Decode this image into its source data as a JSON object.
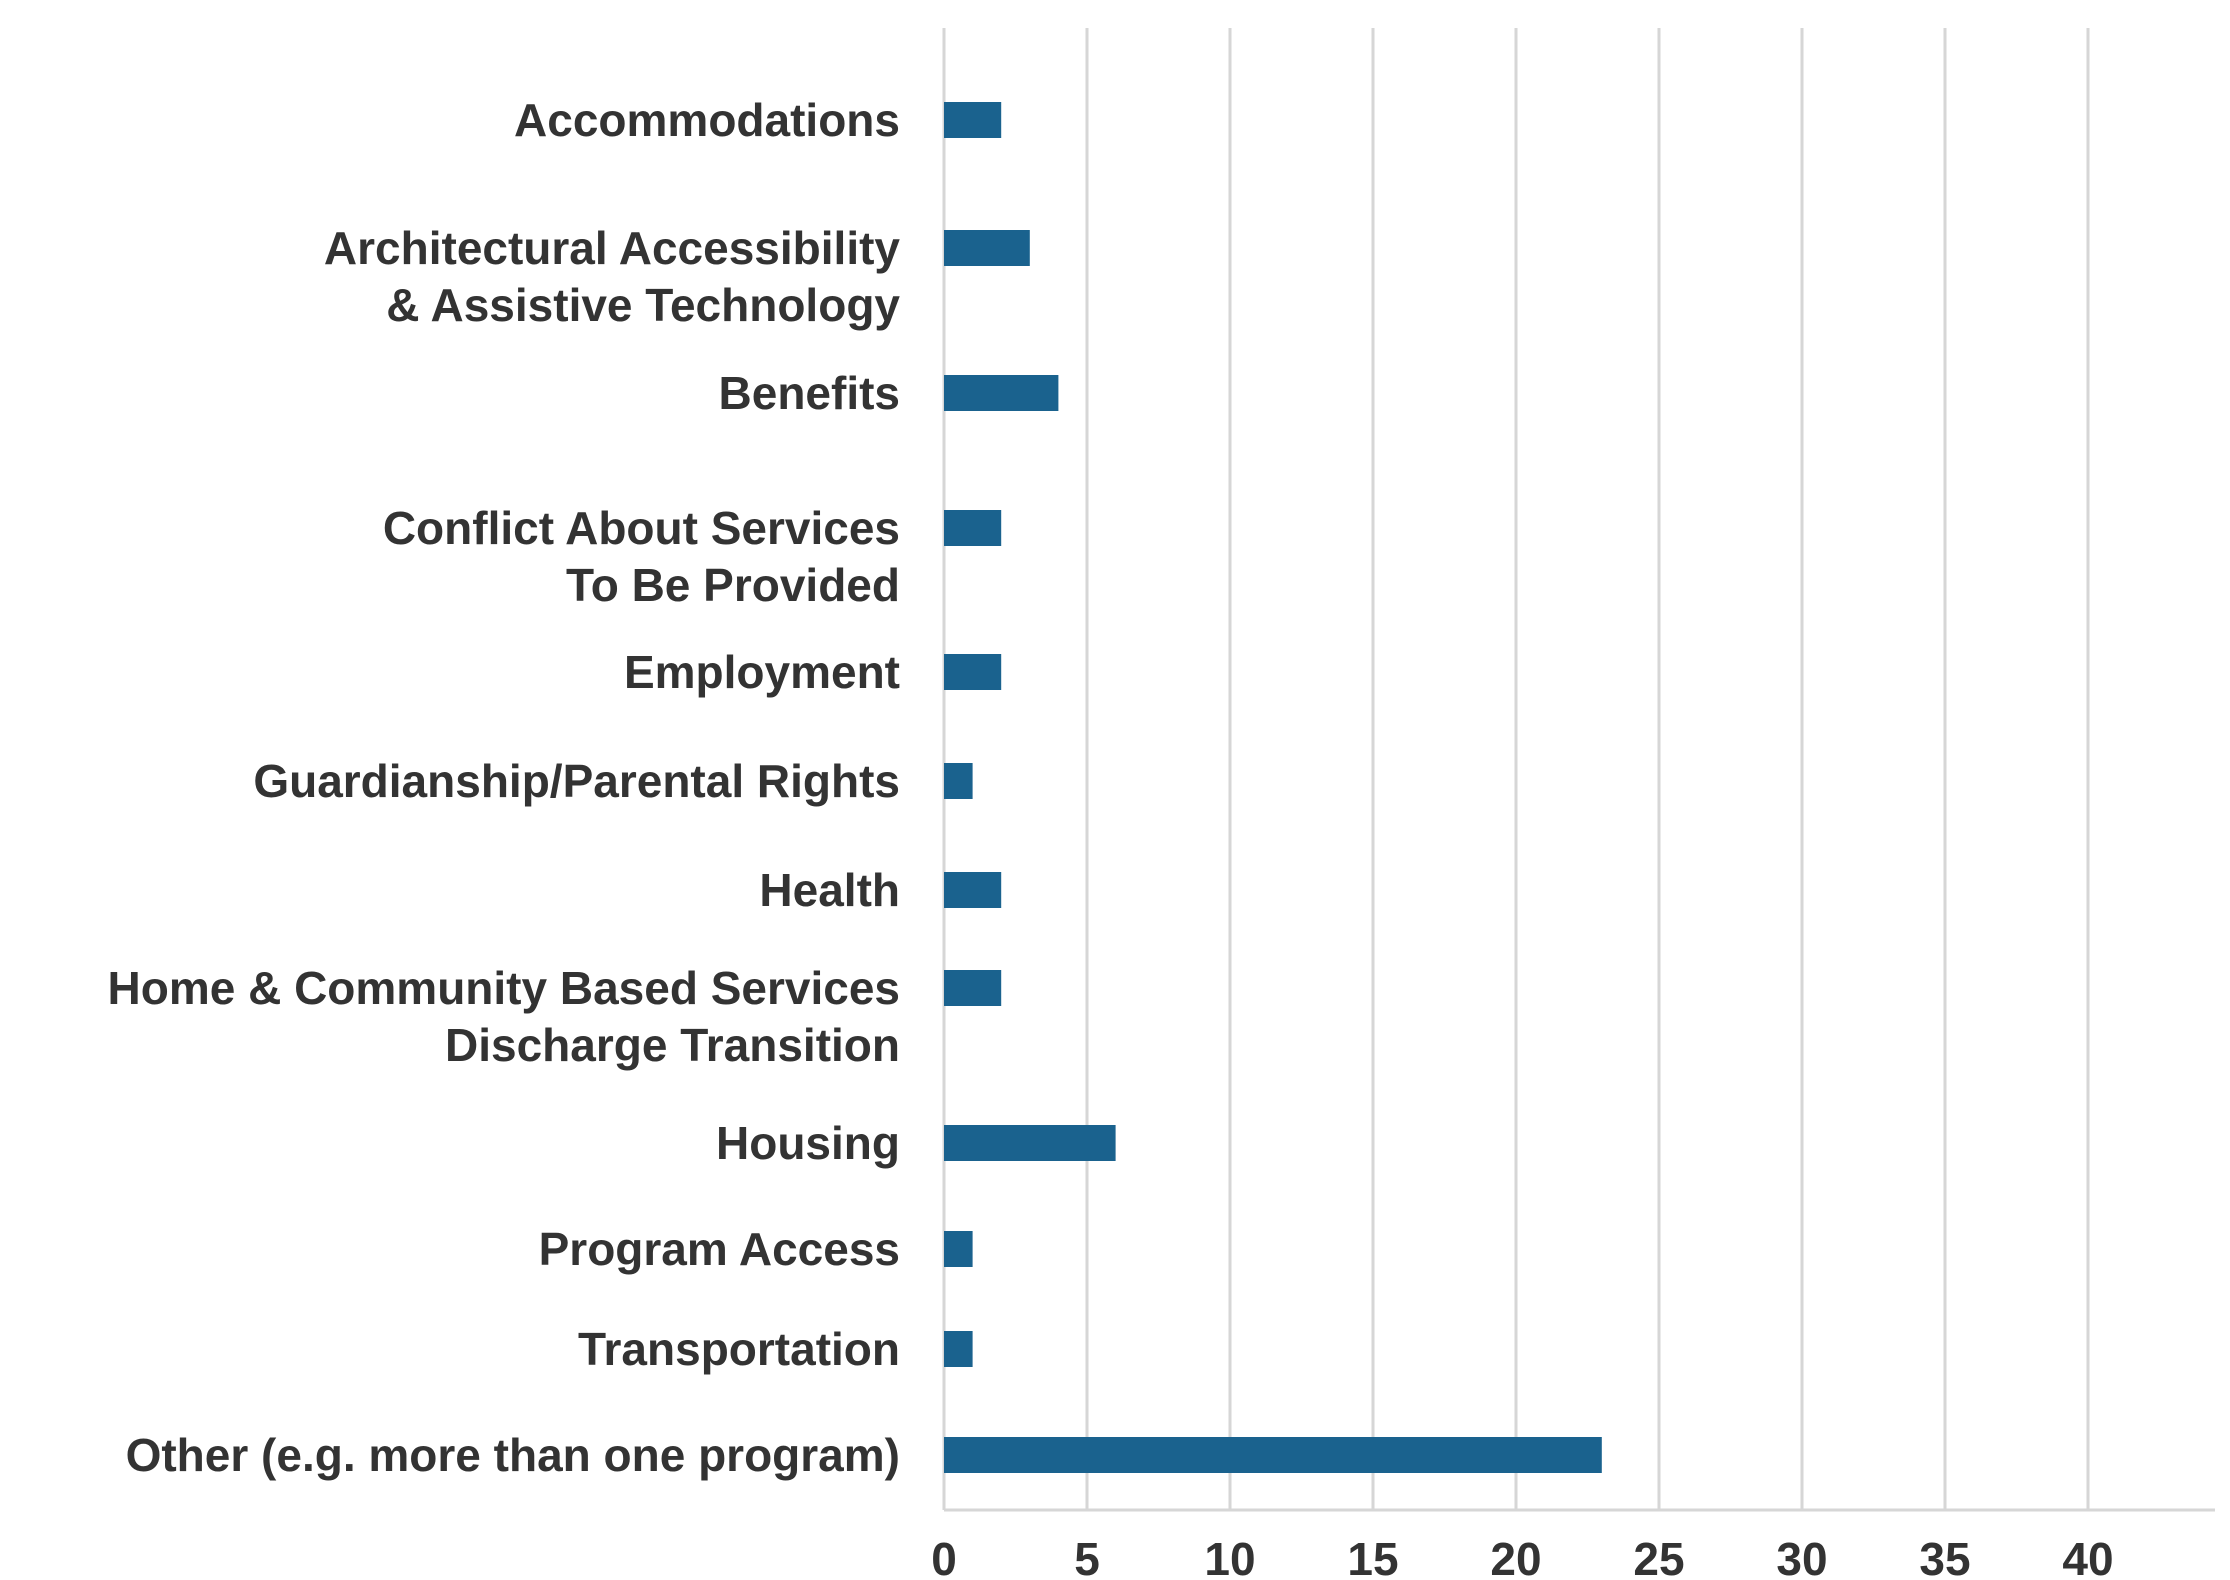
{
  "chart_data": {
    "type": "bar",
    "orientation": "horizontal",
    "title": "",
    "xlabel": "",
    "ylabel": "",
    "categories": [
      [
        "Accommodations"
      ],
      [
        "Architectural Accessibility",
        "& Assistive Technology"
      ],
      [
        "Benefits"
      ],
      [
        "Conflict About Services",
        "To Be Provided"
      ],
      [
        "Employment"
      ],
      [
        "Guardianship/Parental Rights"
      ],
      [
        "Health"
      ],
      [
        "Home & Community Based Services",
        "Discharge Transition"
      ],
      [
        "Housing"
      ],
      [
        "Program Access"
      ],
      [
        "Transportation"
      ],
      [
        "Other (e.g. more than one program)"
      ]
    ],
    "values": [
      2,
      3,
      4,
      2,
      2,
      1,
      2,
      2,
      6,
      1,
      1,
      23
    ],
    "xlim": [
      0,
      45
    ],
    "xticks": [
      0,
      5,
      10,
      15,
      20,
      25,
      30,
      35,
      40
    ],
    "grid": "vertical",
    "legend": "none",
    "colors": {
      "bar": "#1a628e",
      "grid": "#d6d6d6",
      "text": "#333333"
    }
  }
}
